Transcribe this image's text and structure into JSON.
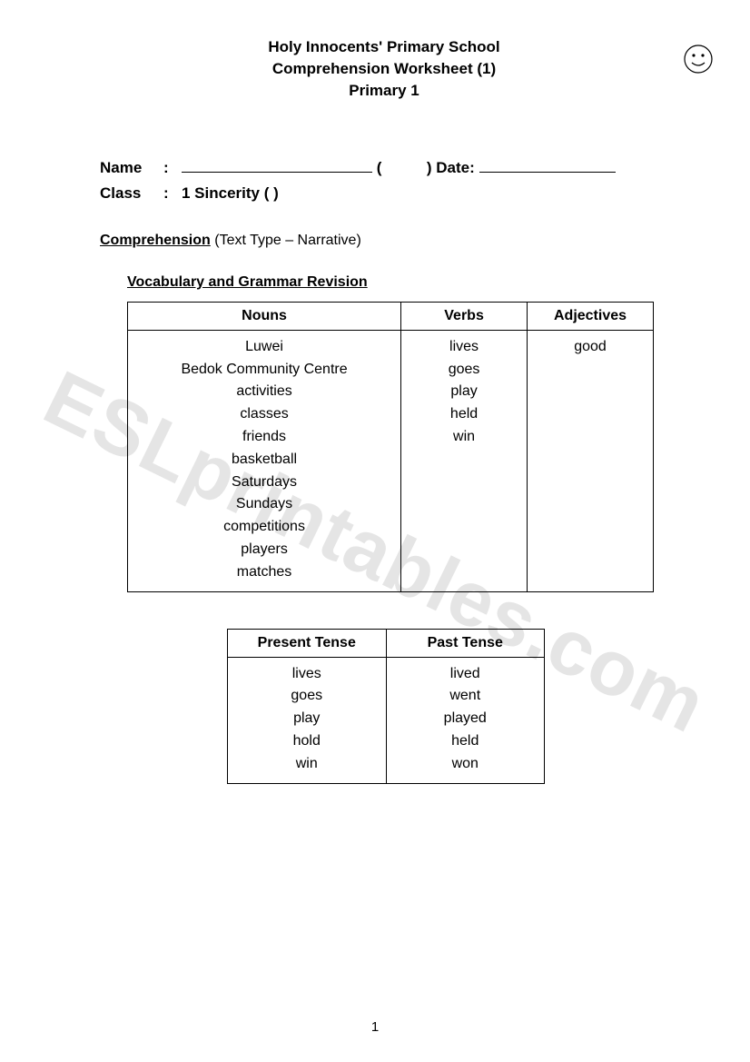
{
  "header": {
    "line1": "Holy Innocents' Primary School",
    "line2": "Comprehension Worksheet (1)",
    "line3": "Primary 1"
  },
  "info": {
    "name_label": "Name",
    "date_label": "Date:",
    "class_label": "Class",
    "class_value": "1 Sincerity (      )"
  },
  "comprehension": {
    "title": "Comprehension",
    "subtitle": " (Text Type – Narrative)"
  },
  "vocab_title": "Vocabulary and Grammar Revision",
  "vocab_table": {
    "headers": {
      "nouns": "Nouns",
      "verbs": "Verbs",
      "adjectives": "Adjectives"
    },
    "nouns": [
      "Luwei",
      "Bedok Community Centre",
      "activities",
      "classes",
      "friends",
      "basketball",
      "Saturdays",
      "Sundays",
      "competitions",
      "players",
      "matches"
    ],
    "verbs": [
      "lives",
      "goes",
      "play",
      "held",
      "win"
    ],
    "adjectives": [
      "good"
    ],
    "col_widths_pct": [
      52,
      24,
      24
    ]
  },
  "tense_table": {
    "headers": {
      "present": "Present Tense",
      "past": "Past Tense"
    },
    "rows": [
      {
        "present": "lives",
        "past": "lived"
      },
      {
        "present": "goes",
        "past": "went"
      },
      {
        "present": "play",
        "past": "played"
      },
      {
        "present": "hold",
        "past": "held"
      },
      {
        "present": "win",
        "past": "won"
      }
    ]
  },
  "watermark": "ESLprintables.com",
  "page_number": "1",
  "colors": {
    "text": "#000000",
    "background": "#ffffff",
    "watermark": "rgba(0,0,0,0.10)",
    "border": "#000000"
  },
  "typography": {
    "body_font": "Comic Sans MS",
    "header_fontsize_pt": 13,
    "body_fontsize_pt": 12,
    "watermark_fontsize_pt": 64
  }
}
